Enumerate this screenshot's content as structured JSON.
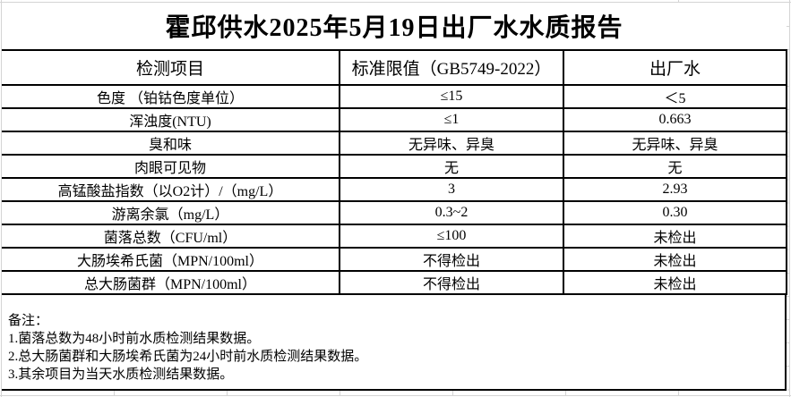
{
  "title": "霍邱供水2025年5月19日出厂水水质报告",
  "table": {
    "headers": [
      "检测项目",
      "标准限值（GB5749-2022）",
      "出厂水"
    ],
    "rows": [
      {
        "item": "色度 （铂钴色度单位）",
        "limit": "≤15",
        "value": "＜5"
      },
      {
        "item": "浑浊度(NTU)",
        "limit": "≤1",
        "value": "0.663"
      },
      {
        "item": "臭和味",
        "limit": "无异味、异臭",
        "value": "无异味、异臭"
      },
      {
        "item": "肉眼可见物",
        "limit": "无",
        "value": "无"
      },
      {
        "item": "高锰酸盐指数（以O2计）/（mg/L）",
        "limit": "3",
        "value": "2.93"
      },
      {
        "item": "游离余氯（mg/L）",
        "limit": "0.3~2",
        "value": "0.30"
      },
      {
        "item": "菌落总数（CFU/ml）",
        "limit": "≤100",
        "value": "未检出"
      },
      {
        "item": "大肠埃希氏菌（MPN/100ml）",
        "limit": "不得检出",
        "value": "未检出"
      },
      {
        "item": "总大肠菌群（MPN/100ml）",
        "limit": "不得检出",
        "value": "未检出"
      }
    ]
  },
  "notes": {
    "label": "备注：",
    "lines": [
      "1.菌落总数为48小时前水质检测结果数据。",
      "2.总大肠菌群和大肠埃希氏菌为24小时前水质检测结果数据。",
      "3.其余项目为当天水质检测结果数据。"
    ]
  },
  "colors": {
    "border": "#000000",
    "gridline": "#d4d4d4",
    "background": "#ffffff",
    "text": "#000000"
  }
}
